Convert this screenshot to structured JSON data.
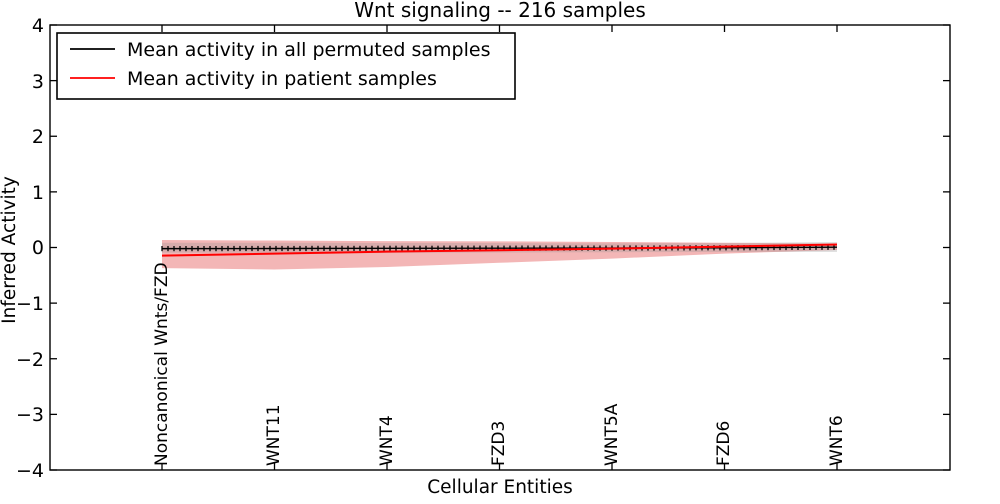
{
  "chart_data": {
    "type": "line",
    "title": "Wnt signaling -- 216 samples",
    "xlabel": "Cellular Entities",
    "ylabel": "Inferred Activity",
    "ylim": [
      -4,
      4
    ],
    "xlim_categories": [
      0,
      6
    ],
    "grid": false,
    "legend_position": "upper-left",
    "yticks": [
      "4",
      "3",
      "2",
      "1",
      "0",
      "−1",
      "−2",
      "−3",
      "−4"
    ],
    "ytick_values": [
      4,
      3,
      2,
      1,
      0,
      -1,
      -2,
      -3,
      -4
    ],
    "categories": [
      "Noncanonical Wnts/FZD",
      "WNT11",
      "WNT4",
      "FZD3",
      "WNT5A",
      "FZD6",
      "WNT6"
    ],
    "series": [
      {
        "name": "Mean activity in all permuted samples",
        "color": "#000000",
        "marker": "tick",
        "values": [
          -0.02,
          -0.018,
          -0.015,
          -0.012,
          -0.01,
          -0.005,
          0.005
        ]
      },
      {
        "name": "Mean activity in patient samples",
        "color": "#ff0000",
        "marker": "none",
        "values": [
          -0.145,
          -0.11,
          -0.075,
          -0.05,
          -0.02,
          0.015,
          0.055
        ]
      }
    ],
    "bands": [
      {
        "name": "patient-samples-std-band",
        "color": "#e04848",
        "opacity": 0.4,
        "upper": [
          0.135,
          0.125,
          0.115,
          0.11,
          0.1,
          0.085,
          0.07
        ],
        "lower": [
          -0.37,
          -0.395,
          -0.35,
          -0.275,
          -0.2,
          -0.11,
          -0.045
        ]
      },
      {
        "name": "permuted-samples-std-band",
        "color": "#909090",
        "opacity": 0.28,
        "upper": [
          0.085,
          0.085,
          0.08,
          0.08,
          0.075,
          0.08,
          0.1
        ],
        "lower": [
          -0.095,
          -0.095,
          -0.095,
          -0.09,
          -0.085,
          -0.08,
          -0.08
        ]
      }
    ]
  }
}
